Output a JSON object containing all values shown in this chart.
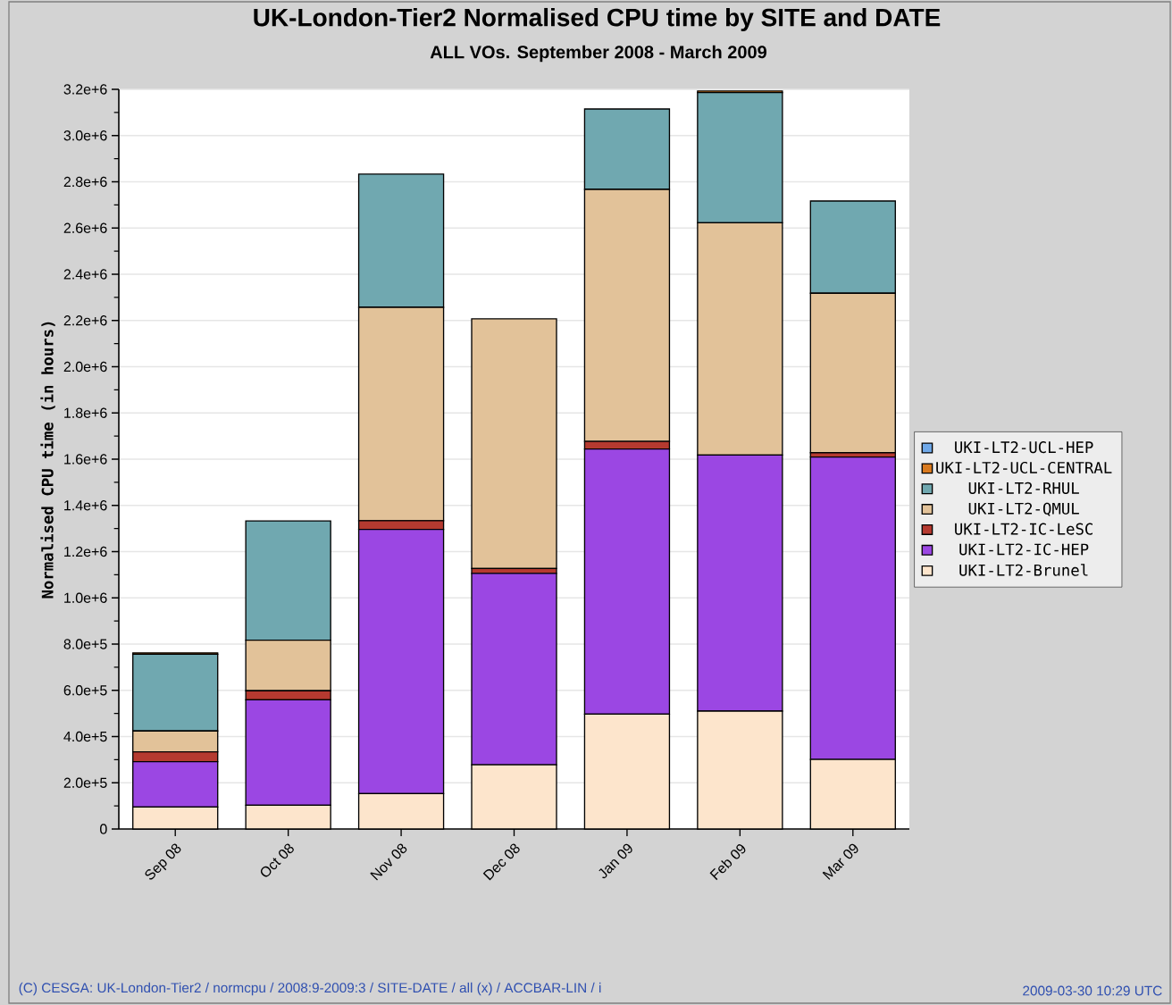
{
  "chart_data": {
    "type": "bar",
    "title": "UK-London-Tier2 Normalised CPU time by SITE and DATE",
    "subtitle": "ALL VOs. September 2008 - March 2009",
    "ylabel": "Normalised CPU time (in hours)",
    "categories": [
      "Sep 08",
      "Oct 08",
      "Nov 08",
      "Dec 08",
      "Jan 09",
      "Feb 09",
      "Mar 09"
    ],
    "series": [
      {
        "name": "UKI-LT2-Brunel",
        "color": "#fde5cc",
        "values": [
          95000,
          103000,
          153000,
          278000,
          497000,
          510000,
          301000
        ]
      },
      {
        "name": "UKI-LT2-IC-HEP",
        "color": "#9b47e3",
        "values": [
          196000,
          456000,
          1143000,
          828000,
          1147000,
          1108000,
          1308000
        ]
      },
      {
        "name": "UKI-LT2-IC-LeSC",
        "color": "#b53a30",
        "values": [
          43000,
          39000,
          38000,
          21000,
          33000,
          0,
          19000
        ]
      },
      {
        "name": "UKI-LT2-QMUL",
        "color": "#e2c299",
        "values": [
          90000,
          219000,
          923000,
          1080000,
          1090000,
          1005000,
          690000
        ]
      },
      {
        "name": "UKI-LT2-RHUL",
        "color": "#70a8b0",
        "values": [
          332000,
          516000,
          576000,
          0,
          348000,
          563000,
          399000
        ]
      },
      {
        "name": "UKI-LT2-UCL-CENTRAL",
        "color": "#d97a1f",
        "values": [
          6000,
          0,
          0,
          0,
          0,
          7000,
          0
        ]
      },
      {
        "name": "UKI-LT2-UCL-HEP",
        "color": "#6fa8e8",
        "values": [
          0,
          0,
          0,
          0,
          0,
          0,
          0
        ]
      }
    ],
    "stacked": true,
    "ylim": [
      0,
      3200000
    ],
    "yticks": [
      0,
      {
        "value": 200000,
        "label": "2.0e+5"
      },
      {
        "value": 400000,
        "label": "4.0e+5"
      },
      {
        "value": 600000,
        "label": "6.0e+5"
      },
      {
        "value": 800000,
        "label": "8.0e+5"
      },
      {
        "value": 1000000,
        "label": "1.0e+6"
      },
      {
        "value": 1200000,
        "label": "1.2e+6"
      },
      {
        "value": 1400000,
        "label": "1.4e+6"
      },
      {
        "value": 1600000,
        "label": "1.6e+6"
      },
      {
        "value": 1800000,
        "label": "1.8e+6"
      },
      {
        "value": 2000000,
        "label": "2.0e+6"
      },
      {
        "value": 2200000,
        "label": "2.2e+6"
      },
      {
        "value": 2400000,
        "label": "2.4e+6"
      },
      {
        "value": 2600000,
        "label": "2.6e+6"
      },
      {
        "value": 2800000,
        "label": "2.8e+6"
      },
      {
        "value": 3000000,
        "label": "3.0e+6"
      },
      {
        "value": 3200000,
        "label": "3.2e+6"
      }
    ],
    "grid": "y",
    "legend": "right",
    "annotations": [
      "(C) CESGA: UK-London-Tier2 / normcpu / 2008:9-2009:3 / SITE-DATE / all (x) / ACCBAR-LIN / i",
      "2009-03-30 10:29 UTC"
    ]
  }
}
